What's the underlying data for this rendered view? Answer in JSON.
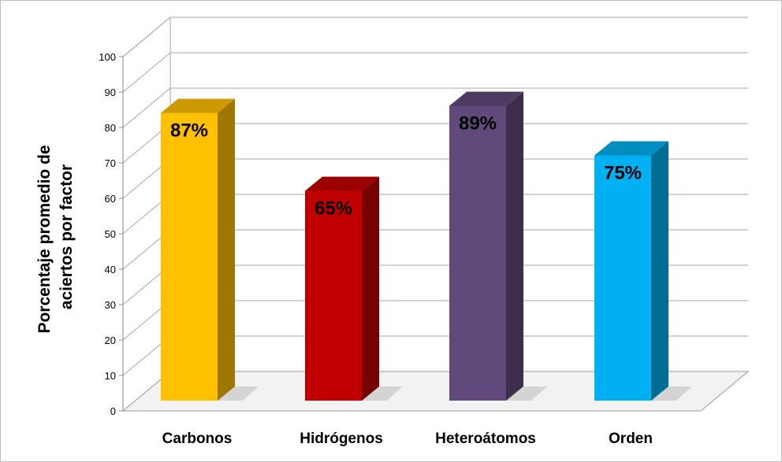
{
  "chart_data": {
    "type": "bar",
    "categories": [
      "Carbonos",
      "Hidrógenos",
      "Heteroátomos",
      "Orden"
    ],
    "values": [
      87,
      65,
      89,
      75
    ],
    "data_labels": [
      "87%",
      "65%",
      "89%",
      "75%"
    ],
    "colors": [
      "#FFC000",
      "#C00000",
      "#604A7B",
      "#00B0F0"
    ],
    "title": "",
    "xlabel": "",
    "ylabel_lines": [
      "Porcentaje promedio de",
      "aciertos por factor"
    ],
    "ylim": [
      0,
      100
    ],
    "yticks": [
      0,
      10,
      20,
      30,
      40,
      50,
      60,
      70,
      80,
      90,
      100
    ],
    "grid": true,
    "style": "3d-column"
  }
}
